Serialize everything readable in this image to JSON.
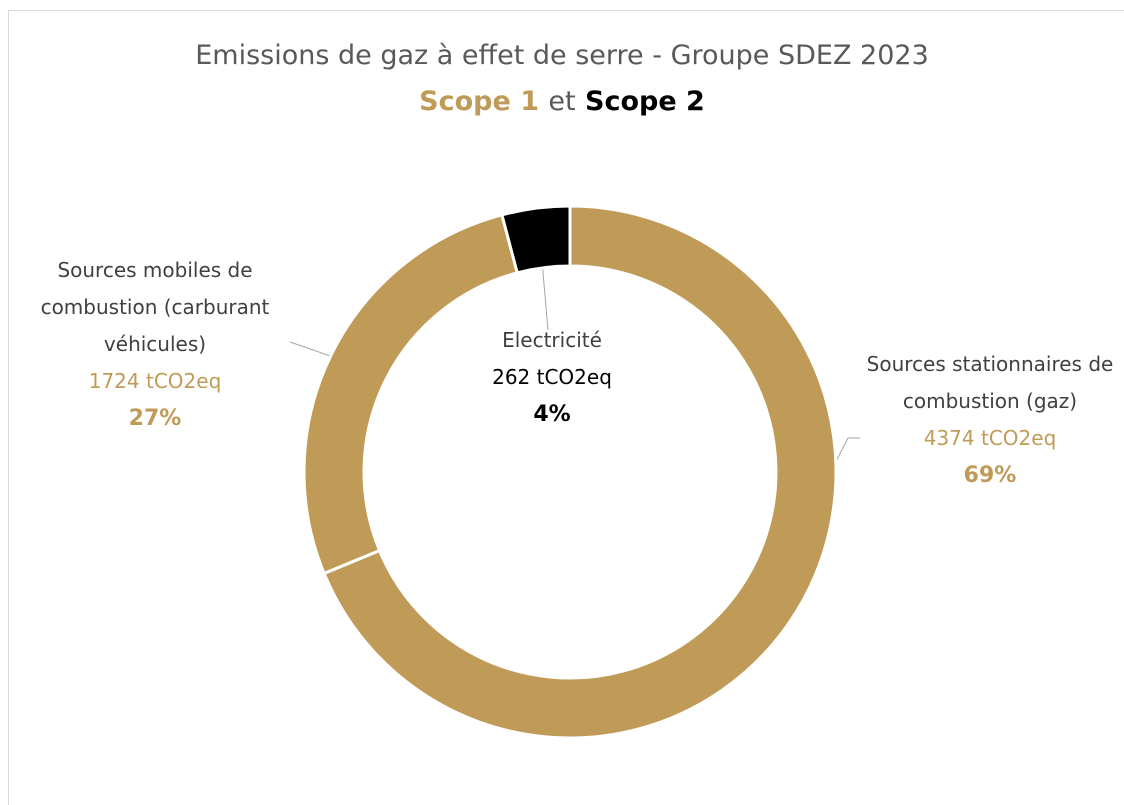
{
  "chart_data": {
    "type": "donut",
    "title": "Emissions de gaz à effet de serre - Groupe SDEZ 2023",
    "subtitle": {
      "scope1": "Scope 1",
      "joiner": "et",
      "scope2": "Scope 2",
      "scope1_color": "#bf9b57",
      "scope2_color": "#000000"
    },
    "categories": [
      "Sources stationnaires de combustion (gaz)",
      "Sources mobiles de combustion (carburant véhicules)",
      "Electricité"
    ],
    "values": [
      4374,
      1724,
      262
    ],
    "value_labels": [
      "4374 tCO2eq",
      "1724 tCO2eq",
      "262 tCO2eq"
    ],
    "percent_labels": [
      "69%",
      "27%",
      "4%"
    ],
    "colors": [
      "#bf9b57",
      "#bf9b57",
      "#000000"
    ],
    "label_colors": [
      "#bf9b57",
      "#bf9b57",
      "#000000"
    ]
  }
}
